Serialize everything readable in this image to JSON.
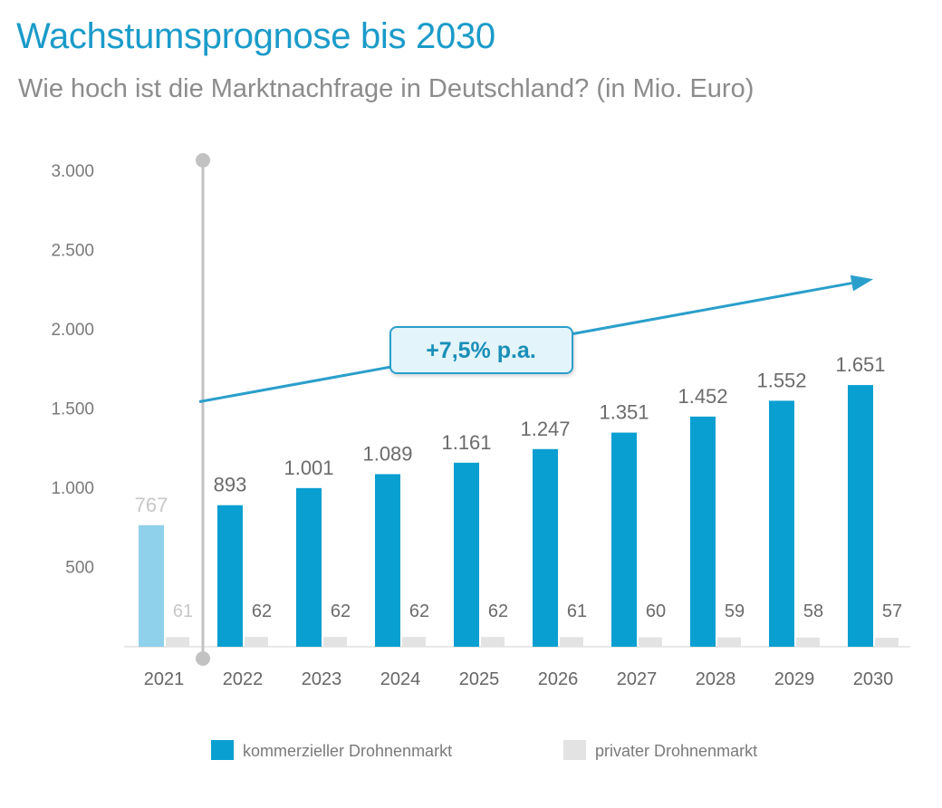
{
  "header": {
    "title": "Wachstumsprognose bis 2030",
    "subtitle": "Wie hoch ist die Marktnachfrage in Deutschland? (in Mio. Euro)"
  },
  "colors": {
    "commercial": "#0a9fd1",
    "commercial_muted": "#8fd0ea",
    "private": "#e3e3e3",
    "title": "#1a9bc9",
    "arrow": "#2a9fcb",
    "axis_marker": "#c2c2c2"
  },
  "chart_data": {
    "type": "bar",
    "categories": [
      "2021",
      "2022",
      "2023",
      "2024",
      "2025",
      "2026",
      "2027",
      "2028",
      "2029",
      "2030"
    ],
    "series": [
      {
        "name": "kommerzieller Drohnenmarkt",
        "values": [
          767,
          893,
          1001,
          1089,
          1161,
          1247,
          1351,
          1452,
          1552,
          1651
        ],
        "labels": [
          "767",
          "893",
          "1.001",
          "1.089",
          "1.161",
          "1.247",
          "1.351",
          "1.452",
          "1.552",
          "1.651"
        ]
      },
      {
        "name": "privater Drohnenmarkt",
        "values": [
          61,
          62,
          62,
          62,
          62,
          61,
          60,
          59,
          58,
          57
        ],
        "labels": [
          "61",
          "62",
          "62",
          "62",
          "62",
          "61",
          "60",
          "59",
          "58",
          "57"
        ]
      }
    ],
    "yticks": [
      500,
      1000,
      1500,
      2000,
      2500,
      3000
    ],
    "ytick_labels": [
      "500",
      "1.000",
      "1.500",
      "2.000",
      "2.500",
      "3.000"
    ],
    "ylim": [
      0,
      3000
    ],
    "xlabel": "",
    "ylabel": "",
    "grid": false,
    "legend_position": "bottom",
    "muted_category": "2021",
    "annotation": {
      "text": "+7,5% p.a.",
      "from_category": "2022",
      "to_category": "2030",
      "from_value": 1500,
      "to_value": 2250
    }
  }
}
